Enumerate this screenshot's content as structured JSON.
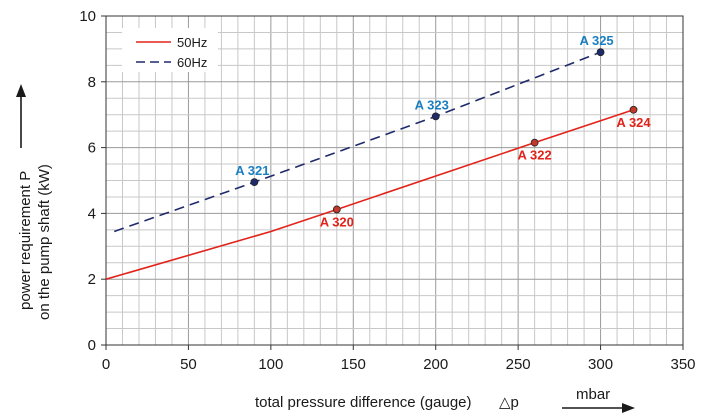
{
  "chart_data": {
    "type": "line",
    "xlabel": "total pressure difference (gauge)",
    "xlabel_symbol": "△p",
    "xunit": "mbar",
    "ylabel_line1": "power requirement P",
    "ylabel_line2": "on the pump shaft (kW)",
    "xlim": [
      0,
      350
    ],
    "ylim": [
      0,
      10
    ],
    "xticks": [
      0,
      50,
      100,
      150,
      200,
      250,
      300,
      350
    ],
    "yticks": [
      0,
      2,
      4,
      6,
      8,
      10
    ],
    "grid": true,
    "legend_position": "top-left",
    "series": [
      {
        "name": "50Hz",
        "style": "solid",
        "color": "#e2231a",
        "x": [
          0,
          100,
          140,
          260,
          320
        ],
        "y": [
          2.0,
          3.45,
          4.12,
          6.15,
          7.15
        ]
      },
      {
        "name": "60Hz",
        "style": "dashed",
        "color": "#1f2a6b",
        "x": [
          5,
          90,
          200,
          300
        ],
        "y": [
          3.45,
          4.95,
          6.95,
          8.9
        ]
      }
    ],
    "annotations": [
      {
        "label": "A 320",
        "x": 140,
        "y": 4.12,
        "color": "#e2231a",
        "label_pos": "below"
      },
      {
        "label": "A 322",
        "x": 260,
        "y": 6.15,
        "color": "#e2231a",
        "label_pos": "below"
      },
      {
        "label": "A 324",
        "x": 320,
        "y": 7.15,
        "color": "#e2231a",
        "label_pos": "below"
      },
      {
        "label": "A 321",
        "x": 90,
        "y": 4.95,
        "color": "#1a7fc1",
        "label_pos": "above"
      },
      {
        "label": "A 323",
        "x": 200,
        "y": 6.95,
        "color": "#1a7fc1",
        "label_pos": "above"
      },
      {
        "label": "A 325",
        "x": 300,
        "y": 8.9,
        "color": "#1a7fc1",
        "label_pos": "above"
      }
    ],
    "marker_color": "#c0392b",
    "marker_color_60": "#1f2a6b"
  }
}
